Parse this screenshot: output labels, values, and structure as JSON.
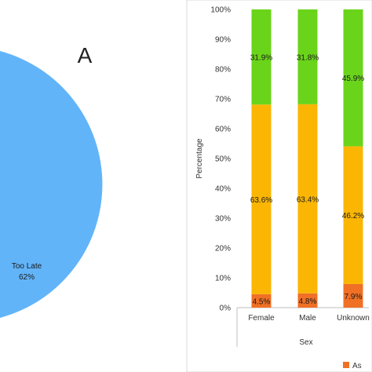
{
  "panel_a": {
    "label": "A",
    "slice_label": "Too Late",
    "slice_pct": "62%"
  },
  "chart_data": [
    {
      "type": "pie",
      "title": "A",
      "slices": [
        {
          "name": "Too Late",
          "value": 62,
          "label": "Too Late",
          "pct_label": "62%",
          "color": "#62b4f9"
        }
      ]
    },
    {
      "type": "bar",
      "stacked": true,
      "xlabel": "Sex",
      "ylabel": "Percentage",
      "ylim": [
        0,
        100
      ],
      "yticks": [
        "0%",
        "10%",
        "20%",
        "30%",
        "40%",
        "50%",
        "60%",
        "70%",
        "80%",
        "90%",
        "100%"
      ],
      "categories": [
        "Female",
        "Male",
        "Unknown"
      ],
      "series": [
        {
          "key": "s1",
          "color": "#f07026",
          "values": [
            4.5,
            4.8,
            7.9
          ],
          "labels": [
            "4.5%",
            "4.8%",
            "7.9%"
          ]
        },
        {
          "key": "s2",
          "color": "#fbb604",
          "values": [
            63.6,
            63.4,
            46.2
          ],
          "labels": [
            "63.6%",
            "63.4%",
            "46.2%"
          ]
        },
        {
          "key": "s3",
          "color": "#6ad41a",
          "values": [
            31.9,
            31.8,
            45.9
          ],
          "labels": [
            "31.9%",
            "31.8%",
            "45.9%"
          ]
        }
      ],
      "legend": {
        "placement": "bottom-right",
        "visible_text": "As",
        "color": "#f07026"
      },
      "grid": false
    }
  ]
}
